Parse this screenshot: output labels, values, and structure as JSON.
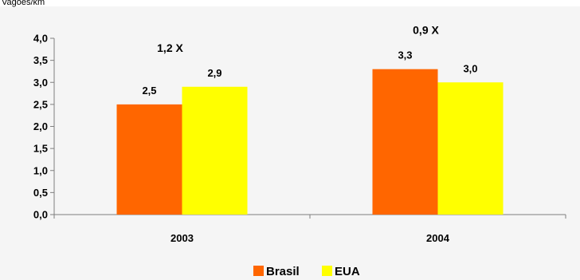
{
  "colors": {
    "brasil": "#ff6600",
    "eua": "#ffff00",
    "plot_bg": "#f5f5f5"
  },
  "chart_data": {
    "type": "bar",
    "title": "",
    "ylabel": "Vagões/km",
    "xlabel": "",
    "categories": [
      "2003",
      "2004"
    ],
    "series": [
      {
        "name": "Brasil",
        "values": [
          2.5,
          3.3
        ],
        "value_labels": [
          "2,5",
          "3,3"
        ]
      },
      {
        "name": "EUA",
        "values": [
          2.9,
          3.0
        ],
        "value_labels": [
          "2,9",
          "3,0"
        ]
      }
    ],
    "ylim": [
      0,
      4
    ],
    "yticks": [
      0,
      0.5,
      1,
      1.5,
      2,
      2.5,
      3,
      3.5,
      4
    ],
    "ytick_labels": [
      "0,0",
      "0,5",
      "1,0",
      "1,5",
      "2,0",
      "2,5",
      "3,0",
      "3,5",
      "4,0"
    ],
    "annotations": [
      "1,2 X",
      "0,9 X"
    ],
    "grid": false,
    "legend_position": "bottom"
  }
}
